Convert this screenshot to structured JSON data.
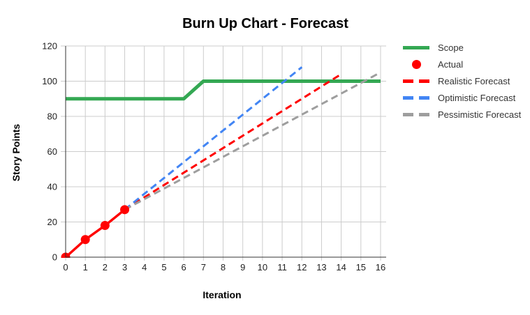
{
  "page": {
    "background": "#ffffff"
  },
  "chart_data": {
    "type": "line",
    "title": "Burn Up Chart - Forecast",
    "xlabel": "Iteration",
    "ylabel": "Story Points",
    "xlim": [
      0,
      16
    ],
    "ylim": [
      0,
      120
    ],
    "x_tick_step": 1,
    "y_tick_step": 20,
    "grid": true,
    "legend_position": "right",
    "colors": {
      "grid": "#cccccc",
      "axis": "#333333",
      "tick_text": "#222222",
      "title_text": "#000000"
    },
    "series": [
      {
        "name": "Scope",
        "style": "solid",
        "color": "#34A853",
        "line_width": 5,
        "points": [
          [
            0,
            90
          ],
          [
            6,
            90
          ],
          [
            7,
            100
          ],
          [
            16,
            100
          ]
        ]
      },
      {
        "name": "Actual",
        "style": "solid",
        "color": "#FF0000",
        "line_width": 3.5,
        "marker": "circle",
        "marker_radius": 6.5,
        "points": [
          [
            0,
            0
          ],
          [
            1,
            10
          ],
          [
            2,
            18
          ],
          [
            3,
            27
          ]
        ]
      },
      {
        "name": "Realistic Forecast",
        "style": "dashed",
        "color": "#FF0000",
        "line_width": 3,
        "points": [
          [
            3,
            27
          ],
          [
            14,
            104
          ]
        ]
      },
      {
        "name": "Optimistic Forecast",
        "style": "dashed",
        "color": "#4285F4",
        "line_width": 3,
        "points": [
          [
            3,
            27
          ],
          [
            12,
            108
          ]
        ]
      },
      {
        "name": "Pessimistic Forecast",
        "style": "dashed",
        "color": "#9E9E9E",
        "line_width": 3,
        "points": [
          [
            3,
            27
          ],
          [
            16,
            105
          ]
        ]
      }
    ]
  }
}
